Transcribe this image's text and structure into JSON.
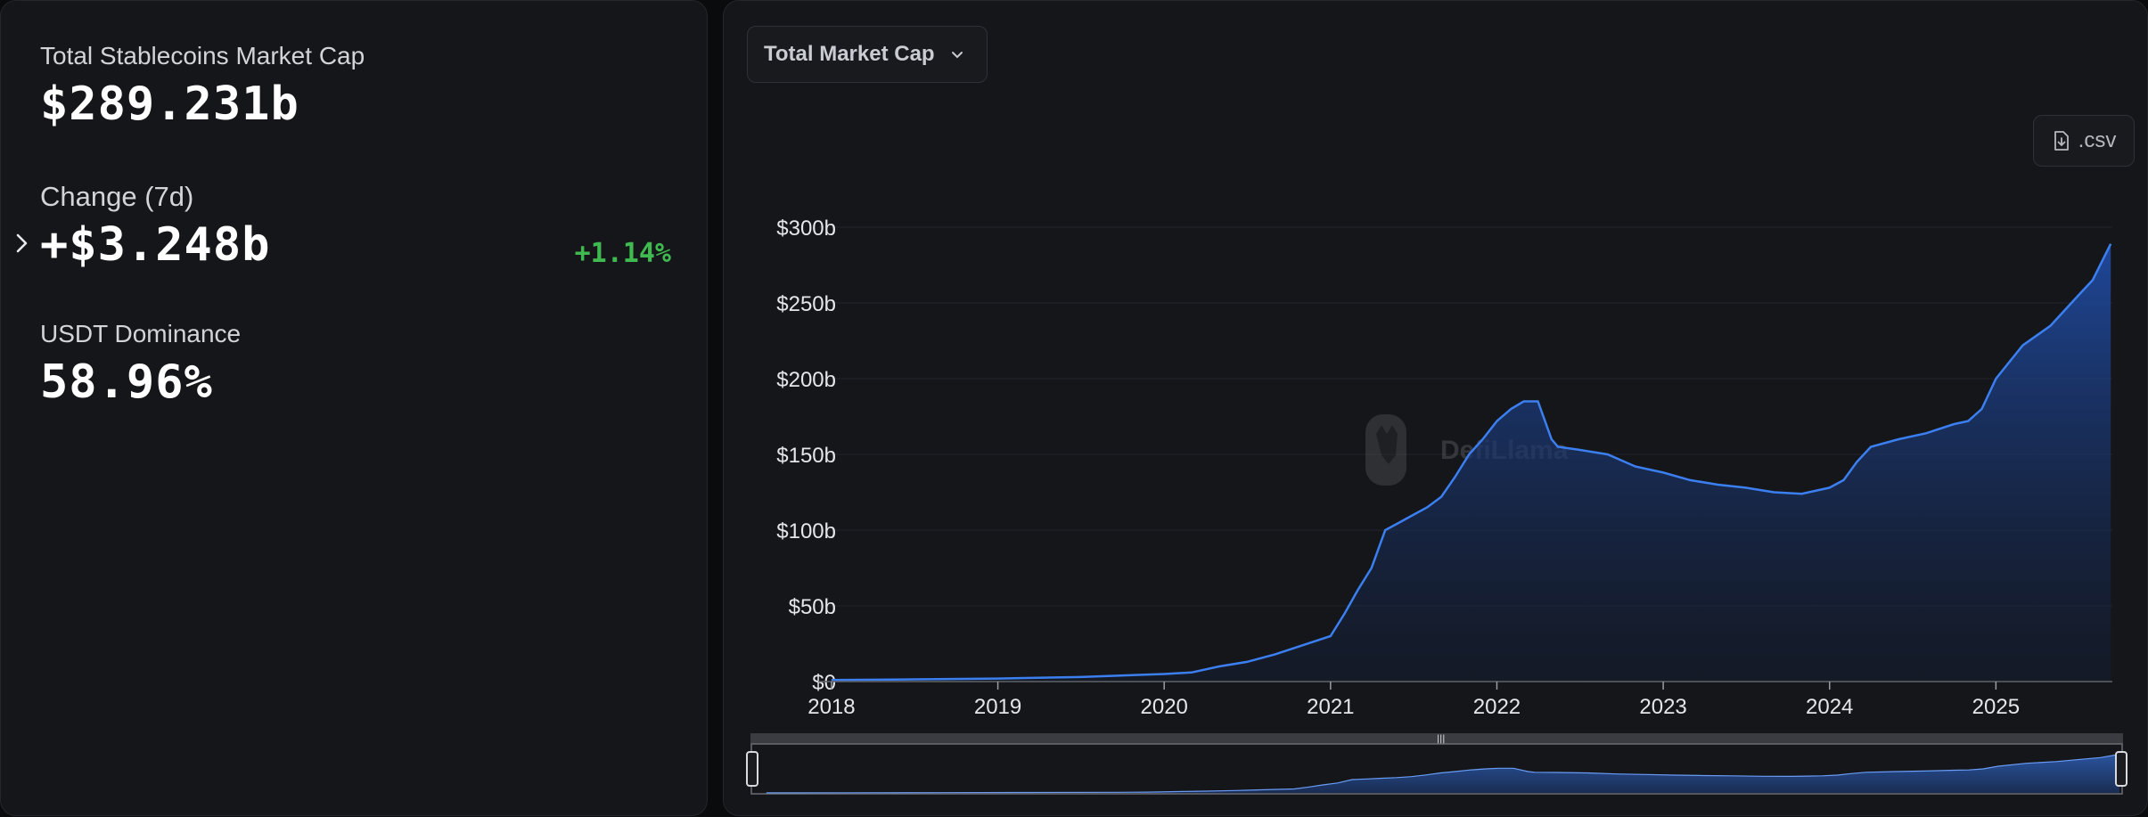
{
  "stats": {
    "market_cap_label": "Total Stablecoins Market Cap",
    "market_cap_value": "$289.231b",
    "change_label": "Change (7d)",
    "change_value": "+$3.248b",
    "change_pct": "+1.14%",
    "dominance_label": "USDT Dominance",
    "dominance_value": "58.96%"
  },
  "controls": {
    "metric_select_label": "Total Market Cap",
    "csv_label": ".csv"
  },
  "watermark": "DefiLlama",
  "colors": {
    "accent": "#3b7ff0",
    "positive": "#3fb950",
    "panel": "#151619",
    "background": "#0a0b0d"
  },
  "chart_data": {
    "type": "area",
    "ylim": [
      0,
      300
    ],
    "y_ticks": [
      "$0",
      "$50b",
      "$100b",
      "$150b",
      "$200b",
      "$250b",
      "$300b"
    ],
    "x_ticks": [
      "2018",
      "2019",
      "2020",
      "2021",
      "2022",
      "2023",
      "2024",
      "2025"
    ],
    "grid": true,
    "series": [
      {
        "x": [
          "2018-01-01",
          "2018-07-01",
          "2019-01-01",
          "2019-07-01",
          "2020-01-01",
          "2020-03-01",
          "2020-05-01",
          "2020-07-01",
          "2020-09-01",
          "2020-11-01",
          "2021-01-01",
          "2021-02-01",
          "2021-03-01",
          "2021-04-01",
          "2021-05-01",
          "2021-06-01",
          "2021-07-01",
          "2021-08-01",
          "2021-09-01",
          "2021-10-01",
          "2021-11-01",
          "2021-12-01",
          "2022-01-01",
          "2022-02-01",
          "2022-03-01",
          "2022-04-01",
          "2022-05-01",
          "2022-05-15",
          "2022-07-01",
          "2022-09-01",
          "2022-11-01",
          "2023-01-01",
          "2023-03-01",
          "2023-05-01",
          "2023-07-01",
          "2023-09-01",
          "2023-11-01",
          "2024-01-01",
          "2024-02-01",
          "2024-03-01",
          "2024-04-01",
          "2024-06-01",
          "2024-08-01",
          "2024-10-01",
          "2024-11-01",
          "2024-12-01",
          "2025-01-01",
          "2025-03-01",
          "2025-05-01",
          "2025-07-01",
          "2025-08-01",
          "2025-09-10"
        ],
        "values": [
          1,
          1.5,
          2,
          3,
          5,
          6,
          10,
          13,
          18,
          24,
          30,
          45,
          60,
          75,
          100,
          105,
          110,
          115,
          122,
          135,
          150,
          160,
          172,
          180,
          185,
          185,
          160,
          155,
          153,
          150,
          142,
          138,
          133,
          130,
          128,
          125,
          124,
          128,
          133,
          145,
          155,
          160,
          164,
          170,
          172,
          180,
          200,
          222,
          235,
          255,
          265,
          289
        ]
      }
    ]
  }
}
